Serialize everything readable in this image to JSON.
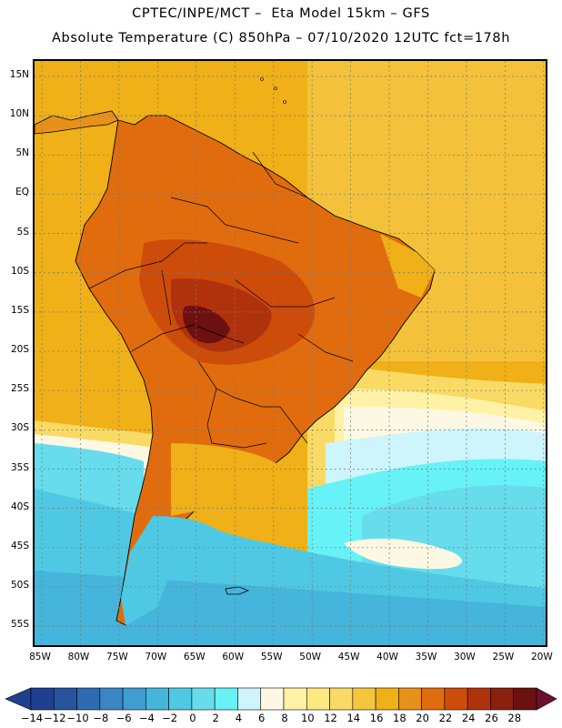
{
  "header": {
    "title_line1": "CPTEC/INPE/MCT –  Eta Model 15km – GFS",
    "title_line2": "Absolute Temperature (C) 850hPa – 07/10/2020 12UTC fct=178h"
  },
  "map": {
    "lat_labels": [
      "15N",
      "10N",
      "5N",
      "EQ",
      "5S",
      "10S",
      "15S",
      "20S",
      "25S",
      "30S",
      "35S",
      "40S",
      "45S",
      "50S",
      "55S"
    ],
    "lon_labels": [
      "85W",
      "80W",
      "75W",
      "70W",
      "65W",
      "60W",
      "55W",
      "50W",
      "45W",
      "40W",
      "35W",
      "30W",
      "25W",
      "20W"
    ],
    "grid": true
  },
  "colorbar": {
    "labels": [
      "-14",
      "-12",
      "-10",
      "-8",
      "-6",
      "-4",
      "-2",
      "0",
      "2",
      "4",
      "6",
      "8",
      "10",
      "12",
      "14",
      "16",
      "18",
      "20",
      "22",
      "24",
      "26",
      "28"
    ],
    "colors": [
      "#1f3f8f",
      "#27549f",
      "#2e6bb0",
      "#3a86c2",
      "#3f9dcf",
      "#45b5db",
      "#4fc9e3",
      "#66dcec",
      "#66f2f6",
      "#cdf5fb",
      "#fdf8e3",
      "#fff2a6",
      "#fde982",
      "#f9da64",
      "#f5c63c",
      "#efb018",
      "#e7901a",
      "#e06c0e",
      "#cd4c0a",
      "#b0320c",
      "#8c200f",
      "#6c1010"
    ]
  },
  "colors": {
    "frame": "#000000",
    "coast": "#000000",
    "grid": "#777777"
  }
}
